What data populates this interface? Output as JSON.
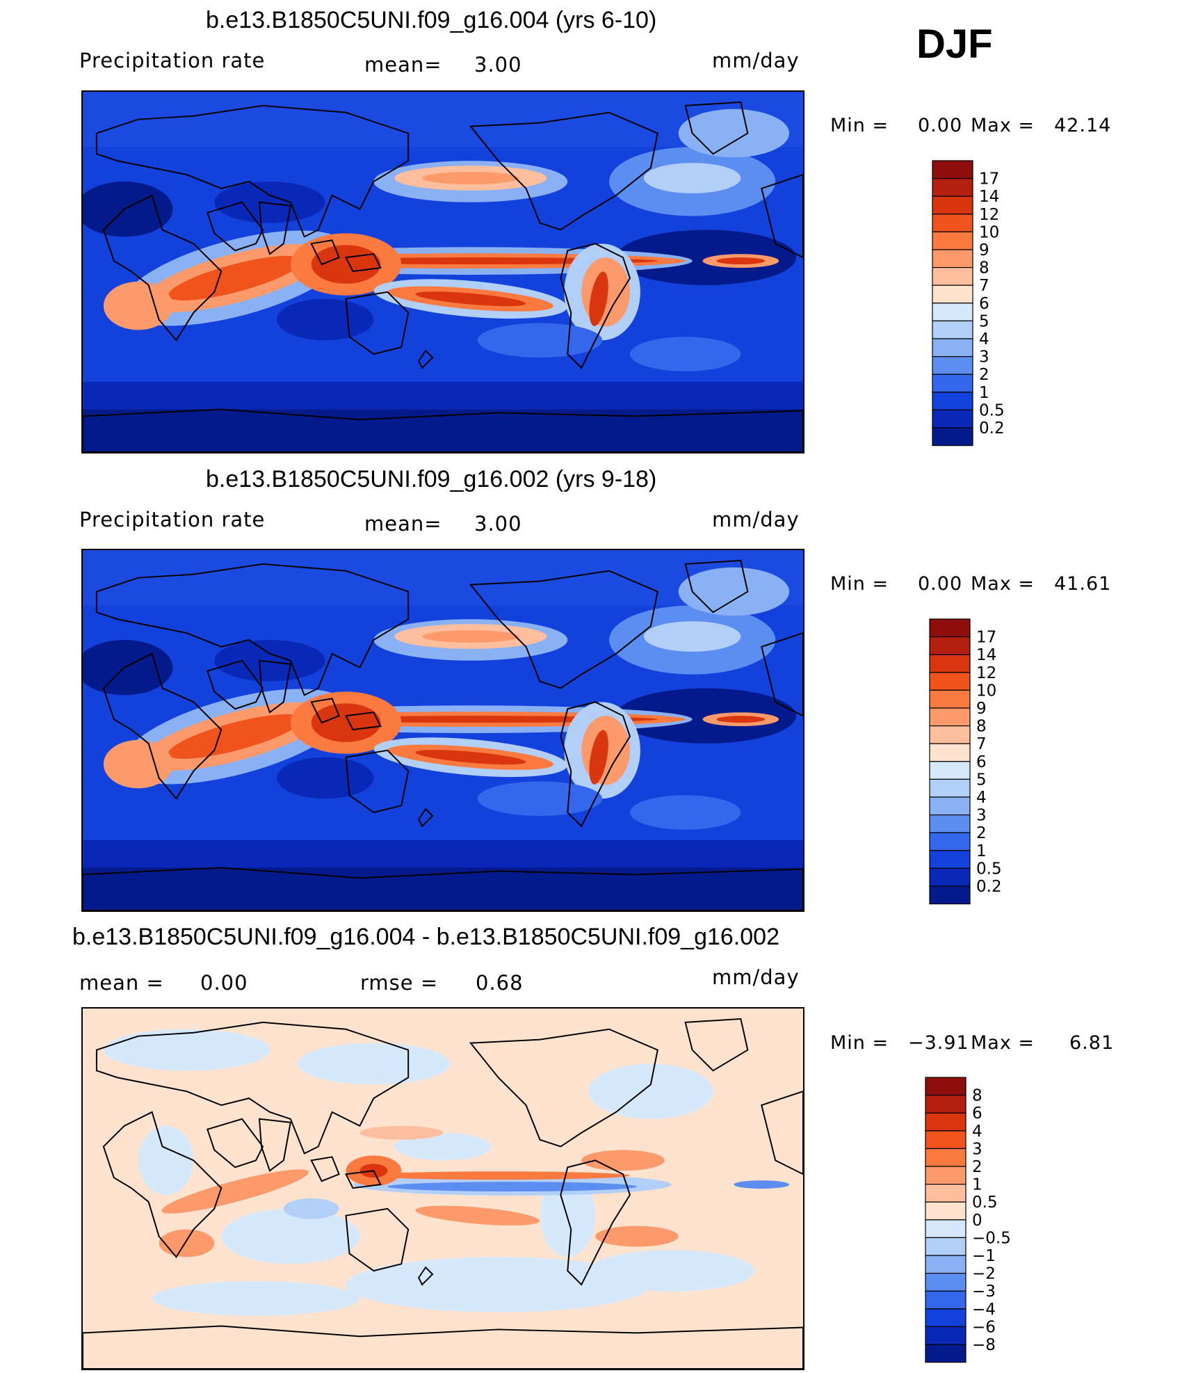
{
  "season": "DJF",
  "panels": [
    {
      "title": "b.e13.B1850C5UNI.f09_g16.004 (yrs 6-10)",
      "variable": "Precipitation  rate",
      "mean_label": "mean=",
      "mean_value": "3.00",
      "units": "mm/day",
      "min_label": "Min  =",
      "min_value": "0.00",
      "max_label": "Max  =",
      "max_value": "42.14",
      "colorbar_labels": [
        "17",
        "14",
        "12",
        "10",
        "9",
        "8",
        "7",
        "6",
        "5",
        "4",
        "3",
        "2",
        "1",
        "0.5",
        "0.2"
      ],
      "colorbar_colors": [
        "#8e0d0d",
        "#b51f0f",
        "#d9360f",
        "#f0531c",
        "#fb7a40",
        "#fd9a6b",
        "#ffbe9e",
        "#ffe3cf",
        "#d6e8fb",
        "#b2cff7",
        "#8ab1f3",
        "#5c8df0",
        "#3467ec",
        "#1341dc",
        "#0a28b8",
        "#051a8a"
      ],
      "map_type": "full"
    },
    {
      "title": "b.e13.B1850C5UNI.f09_g16.002 (yrs 9-18)",
      "variable": "Precipitation  rate",
      "mean_label": "mean=",
      "mean_value": "3.00",
      "units": "mm/day",
      "min_label": "Min  =",
      "min_value": "0.00",
      "max_label": "Max  =",
      "max_value": "41.61",
      "colorbar_labels": [
        "17",
        "14",
        "12",
        "10",
        "9",
        "8",
        "7",
        "6",
        "5",
        "4",
        "3",
        "2",
        "1",
        "0.5",
        "0.2"
      ],
      "colorbar_colors": [
        "#8e0d0d",
        "#b51f0f",
        "#d9360f",
        "#f0531c",
        "#fb7a40",
        "#fd9a6b",
        "#ffbe9e",
        "#ffe3cf",
        "#d6e8fb",
        "#b2cff7",
        "#8ab1f3",
        "#5c8df0",
        "#3467ec",
        "#1341dc",
        "#0a28b8",
        "#051a8a"
      ],
      "map_type": "full"
    },
    {
      "title": "b.e13.B1850C5UNI.f09_g16.004 - b.e13.B1850C5UNI.f09_g16.002",
      "mean_label": "mean  =",
      "mean_value": "0.00",
      "rmse_label": "rmse  =",
      "rmse_value": "0.68",
      "units": "mm/day",
      "min_label": "Min  =",
      "min_value": "−3.91",
      "max_label": "Max  =",
      "max_value": "6.81",
      "colorbar_labels": [
        "8",
        "6",
        "4",
        "3",
        "2",
        "1",
        "0.5",
        "0",
        "−0.5",
        "−1",
        "−2",
        "−3",
        "−4",
        "−6",
        "−8"
      ],
      "colorbar_colors": [
        "#8e0d0d",
        "#b51f0f",
        "#d9360f",
        "#f0531c",
        "#fb7a40",
        "#fd9a6b",
        "#ffbe9e",
        "#ffe3cf",
        "#d6e8fb",
        "#b2cff7",
        "#8ab1f3",
        "#5c8df0",
        "#3467ec",
        "#1341dc",
        "#0a28b8",
        "#051a8a"
      ],
      "map_type": "diff"
    }
  ]
}
